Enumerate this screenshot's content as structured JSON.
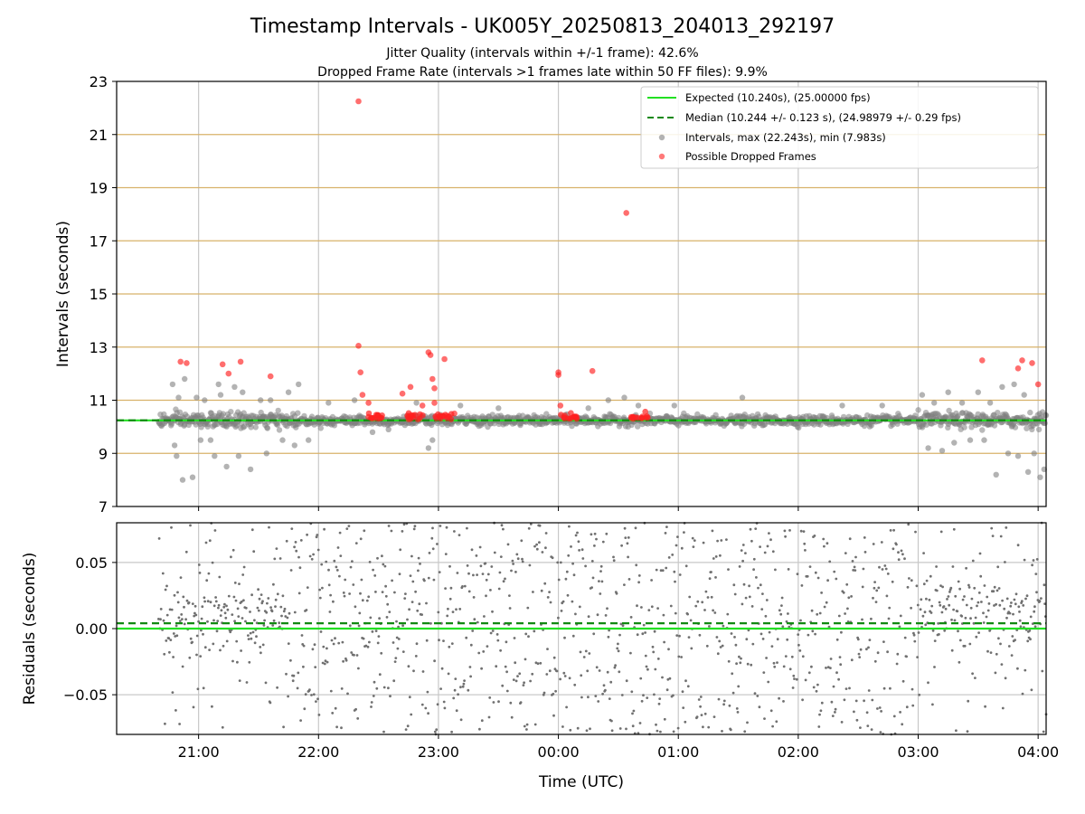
{
  "figure": {
    "title": "Timestamp Intervals - UK005Y_20250813_204013_292197",
    "subtitle_1": "Jitter Quality (intervals within +/-1 frame): 42.6%",
    "subtitle_2": "Dropped Frame Rate (intervals >1 frames late within 50 FF files): 9.9%"
  },
  "chart_data": [
    {
      "type": "scatter",
      "panel": "top",
      "ylabel": "Intervals (seconds)",
      "xlabel": "",
      "xlim": [
        "20:19",
        "04:04"
      ],
      "ylim": [
        7,
        23
      ],
      "y_ticks": [
        "7",
        "9",
        "11",
        "13",
        "15",
        "17",
        "19",
        "21",
        "23"
      ],
      "x_ticks": [
        "21:00",
        "22:00",
        "23:00",
        "00:00",
        "01:00",
        "02:00",
        "03:00",
        "04:00"
      ],
      "grid": "vertical grid at hour ticks; horizontal lines at each y tick (tan)",
      "legend_placement": "top-right",
      "legend": [
        "Expected (10.240s), (25.00000 fps)",
        "Median (10.244 +/- 0.123 s), (24.98979 +/- 0.29 fps)",
        "Intervals, max (22.243s), min (7.983s)",
        "Possible Dropped Frames"
      ],
      "reference_lines": {
        "expected": 10.24,
        "median": 10.244
      },
      "colors": {
        "expected": "#22e022",
        "median": "#118811",
        "intervals": "#808080",
        "dropped": "#ff2020",
        "hgrid": "#d8b26a"
      },
      "series": [
        {
          "name": "Possible Dropped Frames",
          "x": [
            "20:51",
            "20:54",
            "21:12",
            "21:15",
            "21:21",
            "21:36",
            "22:20",
            "22:20",
            "22:21",
            "22:22",
            "22:25",
            "22:42",
            "22:46",
            "22:52",
            "22:55",
            "22:56",
            "22:57",
            "22:58",
            "22:58",
            "23:03",
            "23:08",
            "00:00",
            "00:00",
            "00:01",
            "00:17",
            "00:34",
            "03:32",
            "03:50",
            "03:52",
            "03:57",
            "04:00"
          ],
          "y": [
            12.45,
            12.4,
            12.35,
            12.0,
            12.45,
            11.9,
            22.25,
            13.05,
            12.05,
            11.2,
            10.9,
            11.25,
            11.5,
            10.8,
            12.8,
            12.7,
            11.8,
            11.45,
            10.9,
            12.55,
            10.5,
            12.05,
            11.95,
            10.8,
            12.1,
            18.05,
            12.5,
            12.2,
            12.5,
            12.4,
            11.6
          ]
        },
        {
          "name": "Intervals, max (22.243s), min (7.983s)",
          "x": [
            "20:47",
            "20:48",
            "20:49",
            "20:50",
            "20:52",
            "20:53",
            "20:57",
            "20:59",
            "21:01",
            "21:03",
            "21:06",
            "21:08",
            "21:10",
            "21:11",
            "21:14",
            "21:18",
            "21:20",
            "21:22",
            "21:26",
            "21:31",
            "21:34",
            "21:36",
            "21:42",
            "21:45",
            "21:48",
            "21:50",
            "21:55",
            "22:05",
            "22:18",
            "22:27",
            "22:35",
            "22:49",
            "22:55",
            "22:57",
            "23:11",
            "23:30",
            "00:15",
            "00:25",
            "00:33",
            "00:40",
            "00:58",
            "01:32",
            "02:22",
            "02:42",
            "03:02",
            "03:05",
            "03:08",
            "03:12",
            "03:15",
            "03:18",
            "03:22",
            "03:26",
            "03:30",
            "03:33",
            "03:36",
            "03:39",
            "03:42",
            "03:45",
            "03:48",
            "03:50",
            "03:53",
            "03:55",
            "03:58",
            "04:01",
            "04:03"
          ],
          "y": [
            11.6,
            9.3,
            8.9,
            11.1,
            8.0,
            11.8,
            8.1,
            11.1,
            9.5,
            11.0,
            9.5,
            8.9,
            11.6,
            11.2,
            8.5,
            11.5,
            8.9,
            11.3,
            8.4,
            11.0,
            9.0,
            11.0,
            9.5,
            11.3,
            9.3,
            11.6,
            9.5,
            10.9,
            11.0,
            9.8,
            9.9,
            10.9,
            9.2,
            9.5,
            10.8,
            10.7,
            10.7,
            11.0,
            11.1,
            10.8,
            10.8,
            11.1,
            10.8,
            10.8,
            11.2,
            9.2,
            10.9,
            9.1,
            11.3,
            9.4,
            10.9,
            9.5,
            11.3,
            9.5,
            10.9,
            8.2,
            11.5,
            9.0,
            11.6,
            8.9,
            11.2,
            8.3,
            9.0,
            8.1,
            8.4
          ]
        }
      ]
    },
    {
      "type": "scatter",
      "panel": "bottom",
      "ylabel": "Residuals (seconds)",
      "xlabel": "Time (UTC)",
      "xlim": [
        "20:19",
        "04:04"
      ],
      "ylim": [
        -0.08,
        0.08
      ],
      "y_ticks": [
        "−0.05",
        "0.00",
        "0.05"
      ],
      "x_ticks": [
        "21:00",
        "22:00",
        "23:00",
        "00:00",
        "01:00",
        "02:00",
        "03:00",
        "04:00"
      ],
      "grid": "both axes",
      "reference_lines": {
        "expected": 0.0,
        "median": 0.004
      },
      "colors": {
        "points": "#707070",
        "expected": "#22e022",
        "median": "#118811"
      }
    }
  ]
}
